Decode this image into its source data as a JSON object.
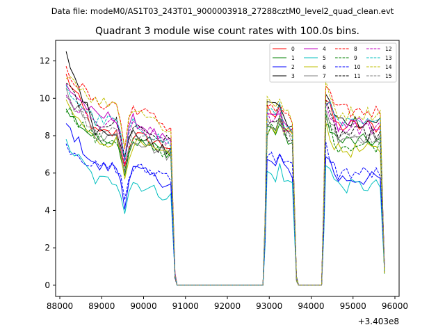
{
  "figure": {
    "suptitle": "Data file: modeM0/AS1T03_243T01_9000003918_27288cztM0_level2_quad_clean.evt"
  },
  "chart_data": {
    "type": "line",
    "title": "Quadrant 3 module wise count rates with 100.0s bins.",
    "xlabel": "",
    "ylabel": "",
    "x_offset_label": "+3.403e8",
    "xlim": [
      87900,
      96100
    ],
    "ylim": [
      -0.6,
      13.1
    ],
    "x_ticks": [
      88000,
      89000,
      90000,
      91000,
      92000,
      93000,
      94000,
      95000,
      96000
    ],
    "x_tick_labels": [
      "88000",
      "89000",
      "90000",
      "91000",
      "92000",
      "93000",
      "94000",
      "95000",
      "96000"
    ],
    "y_ticks": [
      0,
      2,
      4,
      6,
      8,
      10,
      12
    ],
    "y_tick_labels": [
      "0",
      "2",
      "4",
      "6",
      "8",
      "10",
      "12"
    ],
    "grid": false,
    "legend_position": "top-right",
    "legend_columns": 4,
    "segments": [
      {
        "start": 88150,
        "end": 90650
      },
      {
        "start": 92950,
        "end": 93550
      },
      {
        "start": 94350,
        "end": 95650
      }
    ],
    "series": [
      {
        "name": "0",
        "color": "#ff0000",
        "style": "solid",
        "seg1_start": 11.2,
        "seg1": 8.1,
        "dip": 6.3,
        "seg1_end": 7.4,
        "seg2": 9.4,
        "seg2_end": 8.3,
        "seg3": 8.5
      },
      {
        "name": "1",
        "color": "#008000",
        "style": "solid",
        "seg1_start": 9.3,
        "seg1": 7.8,
        "dip": 6.0,
        "seg1_end": 7.1,
        "seg2": 8.5,
        "seg2_end": 7.6,
        "seg3": 7.7
      },
      {
        "name": "2",
        "color": "#0000ff",
        "style": "solid",
        "seg1_start": 8.6,
        "seg1": 6.3,
        "dip": 4.4,
        "seg1_end": 5.4,
        "seg2": 6.6,
        "seg2_end": 6.0,
        "seg3": 5.7
      },
      {
        "name": "3",
        "color": "#000000",
        "style": "solid",
        "seg1_start": 12.3,
        "seg1": 8.3,
        "dip": 6.6,
        "seg1_end": 7.0,
        "seg2": 10.0,
        "seg2_end": 8.3,
        "seg3": 8.8
      },
      {
        "name": "4",
        "color": "#bf00bf",
        "style": "solid",
        "seg1_start": 10.7,
        "seg1": 9.0,
        "dip": 6.8,
        "seg1_end": 7.5,
        "seg2": 9.2,
        "seg2_end": 8.2,
        "seg3": 8.6
      },
      {
        "name": "5",
        "color": "#00bfbf",
        "style": "solid",
        "seg1_start": 7.6,
        "seg1": 5.6,
        "dip": 4.0,
        "seg1_end": 4.7,
        "seg2": 6.0,
        "seg2_end": 5.4,
        "seg3": 5.3
      },
      {
        "name": "6",
        "color": "#bfbf00",
        "style": "solid",
        "seg1_start": 9.6,
        "seg1": 7.7,
        "dip": 5.8,
        "seg1_end": 6.8,
        "seg2": 8.3,
        "seg2_end": 8.1,
        "seg3": 7.2
      },
      {
        "name": "7",
        "color": "#808080",
        "style": "solid",
        "seg1_start": 10.4,
        "seg1": 8.0,
        "dip": 6.2,
        "seg1_end": 6.9,
        "seg2": 9.0,
        "seg2_end": 7.8,
        "seg3": 8.0
      },
      {
        "name": "8",
        "color": "#ff0000",
        "style": "dashed",
        "seg1_start": 11.5,
        "seg1": 9.7,
        "dip": 7.3,
        "seg1_end": 8.4,
        "seg2": 9.6,
        "seg2_end": 8.7,
        "seg3": 9.3
      },
      {
        "name": "9",
        "color": "#008000",
        "style": "dashed",
        "seg1_start": 9.5,
        "seg1": 7.8,
        "dip": 6.0,
        "seg1_end": 7.0,
        "seg2": 8.3,
        "seg2_end": 8.2,
        "seg3": 7.5
      },
      {
        "name": "10",
        "color": "#0000ff",
        "style": "dashed",
        "seg1_start": 7.5,
        "seg1": 6.3,
        "dip": 4.6,
        "seg1_end": 5.9,
        "seg2": 7.0,
        "seg2_end": 6.3,
        "seg3": 6.0
      },
      {
        "name": "11",
        "color": "#000000",
        "style": "dashed",
        "seg1_start": 10.7,
        "seg1": 8.7,
        "dip": 6.7,
        "seg1_end": 7.6,
        "seg2": 8.8,
        "seg2_end": 7.9,
        "seg3": 8.1
      },
      {
        "name": "12",
        "color": "#bf00bf",
        "style": "dashed",
        "seg1_start": 9.9,
        "seg1": 8.6,
        "dip": 6.5,
        "seg1_end": 7.7,
        "seg2": 9.0,
        "seg2_end": 8.3,
        "seg3": 8.4
      },
      {
        "name": "13",
        "color": "#00bfbf",
        "style": "dashed",
        "seg1_start": 10.5,
        "seg1": 8.8,
        "dip": 6.6,
        "seg1_end": 7.5,
        "seg2": 9.5,
        "seg2_end": 8.2,
        "seg3": 8.6
      },
      {
        "name": "14",
        "color": "#bfbf00",
        "style": "dashed",
        "seg1_start": 11.4,
        "seg1": 9.8,
        "dip": 7.4,
        "seg1_end": 8.2,
        "seg2": 10.1,
        "seg2_end": 8.9,
        "seg3": 9.2
      },
      {
        "name": "15",
        "color": "#808080",
        "style": "dashed",
        "seg1_start": 10.0,
        "seg1": 8.2,
        "dip": 6.3,
        "seg1_end": 7.3,
        "seg2": 8.9,
        "seg2_end": 7.9,
        "seg3": 7.9
      }
    ]
  }
}
